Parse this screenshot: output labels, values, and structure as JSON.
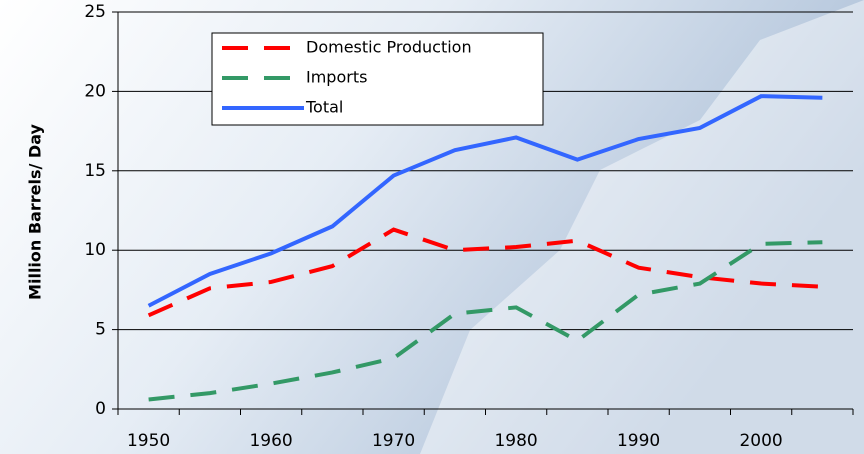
{
  "chart_data": {
    "type": "line",
    "y_label": "Million Barrels/ Day",
    "categories": [
      "1950",
      null,
      "1960",
      null,
      "1970",
      null,
      "1980",
      null,
      "1990",
      null,
      "2000",
      null
    ],
    "series": [
      {
        "name": "Domestic Production",
        "color": "#ff0000",
        "dash": "dashed",
        "values": [
          5.9,
          7.6,
          8.0,
          9.0,
          11.3,
          10.0,
          10.2,
          10.6,
          8.9,
          8.3,
          7.9,
          7.7
        ]
      },
      {
        "name": "Imports",
        "color": "#339966",
        "dash": "dashed",
        "values": [
          0.6,
          1.0,
          1.6,
          2.3,
          3.2,
          6.0,
          6.4,
          4.3,
          7.2,
          7.9,
          10.4,
          10.5
        ]
      },
      {
        "name": "Total",
        "color": "#3366ff",
        "dash": "solid",
        "values": [
          6.5,
          8.5,
          9.8,
          11.5,
          14.7,
          16.3,
          17.1,
          15.7,
          17.0,
          17.7,
          19.7,
          19.6
        ]
      }
    ],
    "ylim": [
      0,
      25
    ],
    "yticks": [
      0,
      5,
      10,
      15,
      20,
      25
    ],
    "grid": true
  }
}
